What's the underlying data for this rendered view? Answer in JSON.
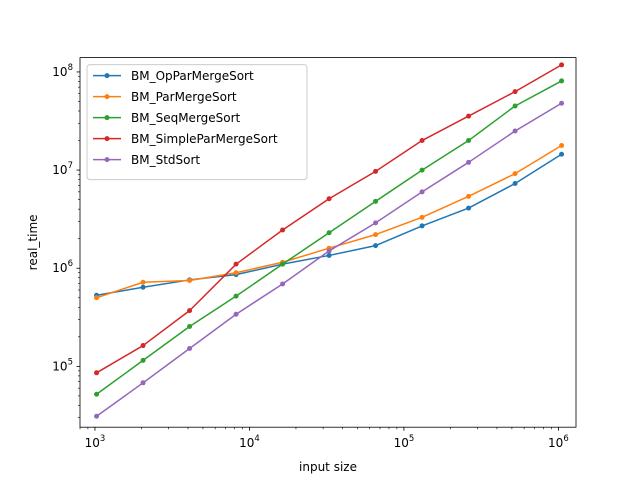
{
  "chart_data": {
    "type": "line",
    "title": "",
    "xlabel": "input size",
    "ylabel": "real_time",
    "xscale": "log",
    "yscale": "log",
    "xlim": [
      800,
      1300000
    ],
    "ylim": [
      24000,
      140000000
    ],
    "grid": false,
    "legend_position": "upper left",
    "x_ticks": [
      {
        "base": "10",
        "exp": "3",
        "value": 1000
      },
      {
        "base": "10",
        "exp": "4",
        "value": 10000
      },
      {
        "base": "10",
        "exp": "5",
        "value": 100000
      },
      {
        "base": "10",
        "exp": "6",
        "value": 1000000
      }
    ],
    "y_ticks": [
      {
        "base": "10",
        "exp": "5",
        "value": 100000
      },
      {
        "base": "10",
        "exp": "6",
        "value": 1000000
      },
      {
        "base": "10",
        "exp": "7",
        "value": 10000000
      },
      {
        "base": "10",
        "exp": "8",
        "value": 100000000
      }
    ],
    "x": [
      1024,
      2048,
      4096,
      8192,
      16384,
      32768,
      65536,
      131072,
      262144,
      524288,
      1048576
    ],
    "series": [
      {
        "name": "BM_OpParMergeSort",
        "color": "#1f77b4",
        "values": [
          530000,
          640000,
          760000,
          860000,
          1100000,
          1350000,
          1700000,
          2700000,
          4100000,
          7300000,
          14500000
        ]
      },
      {
        "name": "BM_ParMergeSort",
        "color": "#ff7f0e",
        "values": [
          500000,
          720000,
          750000,
          900000,
          1150000,
          1600000,
          2200000,
          3300000,
          5400000,
          9200000,
          17800000
        ]
      },
      {
        "name": "BM_SeqMergeSort",
        "color": "#2ca02c",
        "values": [
          52000,
          115000,
          255000,
          520000,
          1100000,
          2300000,
          4800000,
          10000000,
          20000000,
          45000000,
          81000000
        ]
      },
      {
        "name": "BM_SimpleParMergeSort",
        "color": "#d62728",
        "values": [
          86000,
          163000,
          370000,
          1100000,
          2450000,
          5100000,
          9700000,
          20000000,
          35500000,
          63000000,
          118000000
        ]
      },
      {
        "name": "BM_StdSort",
        "color": "#9467bd",
        "values": [
          31000,
          68000,
          152000,
          340000,
          690000,
          1500000,
          2900000,
          6000000,
          12000000,
          25000000,
          48000000
        ]
      }
    ]
  }
}
